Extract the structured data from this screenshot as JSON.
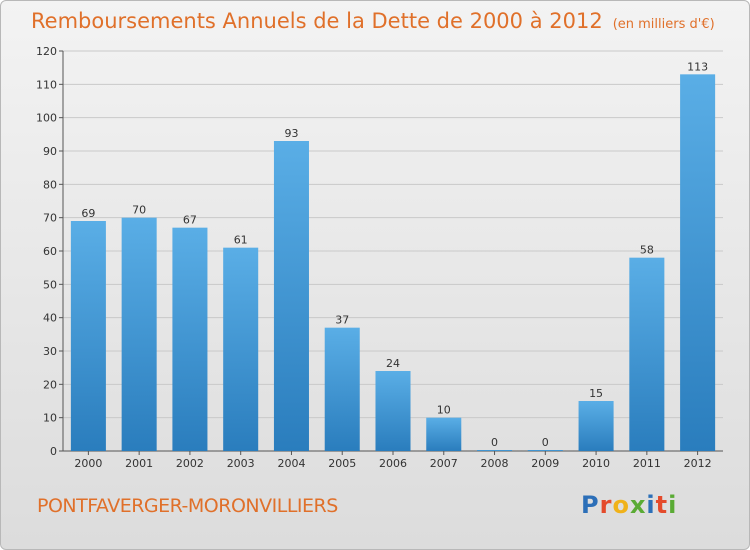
{
  "header": {
    "title": "Remboursements Annuels de la Dette de 2000 à 2012",
    "unit": "(en milliers d'€)"
  },
  "footer": {
    "city": "PONTFAVERGER-MORONVILLIERS",
    "logo_letters": [
      {
        "char": "P",
        "color": "#2c6fb8"
      },
      {
        "char": "r",
        "color": "#e44b2c"
      },
      {
        "char": "o",
        "color": "#f0b21a"
      },
      {
        "char": "x",
        "color": "#5aab34"
      },
      {
        "char": "i",
        "color": "#2c6fb8"
      },
      {
        "char": "t",
        "color": "#e44b2c"
      },
      {
        "char": "i",
        "color": "#5aab34"
      }
    ]
  },
  "chart_data": {
    "type": "bar",
    "title": "Remboursements Annuels de la Dette de 2000 à 2012",
    "subtitle": "(en milliers d'€)",
    "categories": [
      "2000",
      "2001",
      "2002",
      "2003",
      "2004",
      "2005",
      "2006",
      "2007",
      "2008",
      "2009",
      "2010",
      "2011",
      "2012"
    ],
    "values": [
      69,
      70,
      67,
      61,
      93,
      37,
      24,
      10,
      0,
      0,
      15,
      58,
      113
    ],
    "ylim": [
      0,
      120
    ],
    "yticks": [
      0,
      10,
      20,
      30,
      40,
      50,
      60,
      70,
      80,
      90,
      100,
      110,
      120
    ],
    "grid": true,
    "bar_color_top": "#5aaee6",
    "bar_color_bottom": "#2a7dbd"
  }
}
